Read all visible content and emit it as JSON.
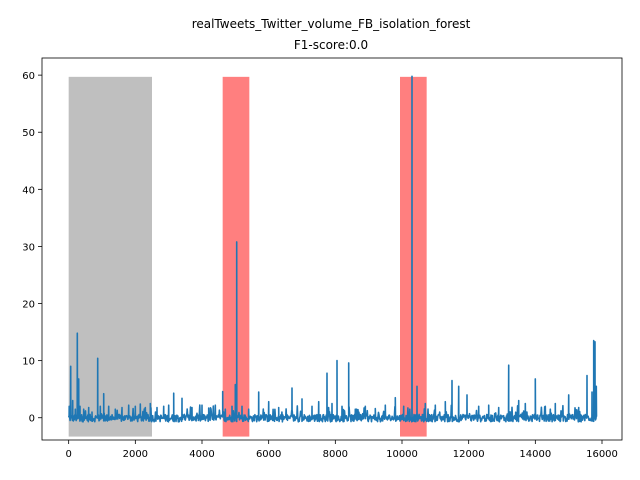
{
  "chart_data": {
    "type": "line",
    "title_line1": "realTweets_Twitter_volume_FB_isolation_forest",
    "title_line2": "F1-score:0.0",
    "xlabel": "",
    "ylabel": "",
    "xlim": [
      -800,
      16600
    ],
    "ylim": [
      -3.9,
      63.0
    ],
    "x_ticks": [
      0,
      2000,
      4000,
      6000,
      8000,
      10000,
      12000,
      14000,
      16000
    ],
    "x_tick_labels": [
      "0",
      "2000",
      "4000",
      "6000",
      "8000",
      "10000",
      "12000",
      "14000",
      "16000"
    ],
    "y_ticks": [
      0,
      10,
      20,
      30,
      40,
      50,
      60
    ],
    "y_tick_labels": [
      "0",
      "10",
      "20",
      "30",
      "40",
      "50",
      "60"
    ],
    "grid": false,
    "shaded_regions": [
      {
        "x_start": 0,
        "x_end": 2500,
        "y_max": 59.7,
        "color": "#bfbfbf"
      },
      {
        "x_start": 4620,
        "x_end": 5420,
        "y_max": 59.7,
        "color": "#ff7f7f"
      },
      {
        "x_start": 9940,
        "x_end": 10740,
        "y_max": 59.7,
        "color": "#ff7f7f"
      }
    ],
    "series": [
      {
        "color": "#1f77b4",
        "x_range": [
          0,
          15830
        ],
        "baseline": 0.0,
        "spikes": [
          [
            15,
            2.0
          ],
          [
            60,
            9.0
          ],
          [
            120,
            3.0
          ],
          [
            200,
            1.5
          ],
          [
            260,
            14.8
          ],
          [
            300,
            6.8
          ],
          [
            340,
            2.0
          ],
          [
            450,
            1.5
          ],
          [
            600,
            1.8
          ],
          [
            700,
            1.0
          ],
          [
            870,
            10.4
          ],
          [
            950,
            2.0
          ],
          [
            1050,
            4.2
          ],
          [
            1200,
            2.0
          ],
          [
            1400,
            1.5
          ],
          [
            1600,
            1.8
          ],
          [
            1800,
            2.2
          ],
          [
            2000,
            2.0
          ],
          [
            2150,
            2.4
          ],
          [
            2300,
            1.8
          ],
          [
            2450,
            2.5
          ],
          [
            2650,
            1.8
          ],
          [
            2850,
            2.0
          ],
          [
            3000,
            2.2
          ],
          [
            3150,
            4.3
          ],
          [
            3400,
            3.4
          ],
          [
            3700,
            1.8
          ],
          [
            4000,
            2.2
          ],
          [
            4200,
            1.7
          ],
          [
            4400,
            2.2
          ],
          [
            4620,
            4.6
          ],
          [
            4700,
            1.5
          ],
          [
            4900,
            2.0
          ],
          [
            5000,
            5.8
          ],
          [
            5040,
            30.8
          ],
          [
            5200,
            2.0
          ],
          [
            5400,
            1.5
          ],
          [
            5700,
            4.5
          ],
          [
            6000,
            2.8
          ],
          [
            6300,
            1.8
          ],
          [
            6700,
            5.2
          ],
          [
            7000,
            3.3
          ],
          [
            7300,
            2.0
          ],
          [
            7500,
            2.8
          ],
          [
            7750,
            7.8
          ],
          [
            7900,
            2.5
          ],
          [
            8050,
            10.0
          ],
          [
            8200,
            2.0
          ],
          [
            8400,
            9.6
          ],
          [
            8600,
            1.5
          ],
          [
            8900,
            2.0
          ],
          [
            9200,
            1.6
          ],
          [
            9500,
            2.2
          ],
          [
            9800,
            3.5
          ],
          [
            10050,
            2.0
          ],
          [
            10300,
            59.8
          ],
          [
            10450,
            5.5
          ],
          [
            10700,
            2.5
          ],
          [
            11000,
            2.2
          ],
          [
            11300,
            2.8
          ],
          [
            11500,
            6.5
          ],
          [
            11700,
            5.5
          ],
          [
            11950,
            4.0
          ],
          [
            12300,
            2.0
          ],
          [
            12600,
            2.2
          ],
          [
            12900,
            1.8
          ],
          [
            13200,
            9.2
          ],
          [
            13500,
            3.0
          ],
          [
            13700,
            2.5
          ],
          [
            14000,
            6.8
          ],
          [
            14300,
            2.0
          ],
          [
            14600,
            2.5
          ],
          [
            15000,
            4.0
          ],
          [
            15300,
            1.8
          ],
          [
            15550,
            7.4
          ],
          [
            15700,
            4.5
          ],
          [
            15750,
            13.5
          ],
          [
            15790,
            13.3
          ],
          [
            15830,
            5.5
          ]
        ]
      }
    ]
  }
}
